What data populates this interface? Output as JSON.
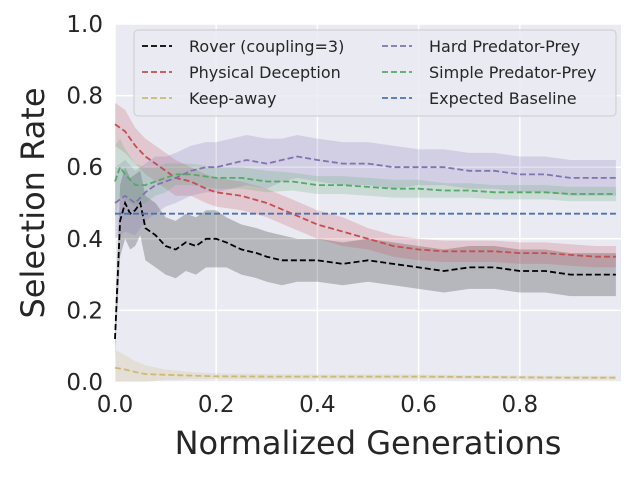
{
  "chart_data": {
    "type": "line",
    "title": "",
    "xlabel": "Normalized Generations",
    "ylabel": "Selection Rate",
    "xlim": [
      0.0,
      1.0
    ],
    "ylim": [
      0.0,
      1.0
    ],
    "xticks": [
      "0.0",
      "0.2",
      "0.4",
      "0.6",
      "0.8"
    ],
    "yticks": [
      "0.0",
      "0.2",
      "0.4",
      "0.6",
      "0.8",
      "1.0"
    ],
    "grid": true,
    "legend_position": "top",
    "series": [
      {
        "name": "Rover (coupling=3)",
        "color": "#000000",
        "x": [
          0.0,
          0.01,
          0.02,
          0.03,
          0.04,
          0.05,
          0.06,
          0.08,
          0.1,
          0.12,
          0.14,
          0.16,
          0.18,
          0.2,
          0.22,
          0.25,
          0.28,
          0.3,
          0.33,
          0.36,
          0.4,
          0.45,
          0.5,
          0.55,
          0.6,
          0.65,
          0.7,
          0.75,
          0.8,
          0.85,
          0.9,
          0.95,
          0.99
        ],
        "y": [
          0.12,
          0.45,
          0.5,
          0.47,
          0.48,
          0.5,
          0.43,
          0.41,
          0.38,
          0.37,
          0.39,
          0.38,
          0.4,
          0.4,
          0.39,
          0.37,
          0.36,
          0.35,
          0.34,
          0.34,
          0.34,
          0.33,
          0.34,
          0.33,
          0.32,
          0.31,
          0.32,
          0.32,
          0.31,
          0.31,
          0.3,
          0.3,
          0.3
        ],
        "band": [
          0.05,
          0.1,
          0.1,
          0.1,
          0.1,
          0.09,
          0.09,
          0.09,
          0.08,
          0.08,
          0.08,
          0.08,
          0.08,
          0.08,
          0.07,
          0.07,
          0.07,
          0.07,
          0.07,
          0.06,
          0.06,
          0.06,
          0.06,
          0.06,
          0.06,
          0.06,
          0.06,
          0.06,
          0.06,
          0.06,
          0.06,
          0.06,
          0.06
        ]
      },
      {
        "name": "Physical Deception",
        "color": "#C44E52",
        "x": [
          0.0,
          0.02,
          0.04,
          0.06,
          0.08,
          0.1,
          0.12,
          0.15,
          0.18,
          0.2,
          0.25,
          0.3,
          0.35,
          0.4,
          0.45,
          0.5,
          0.55,
          0.6,
          0.65,
          0.7,
          0.75,
          0.8,
          0.85,
          0.9,
          0.95,
          0.99
        ],
        "y": [
          0.72,
          0.7,
          0.66,
          0.63,
          0.61,
          0.59,
          0.57,
          0.56,
          0.54,
          0.53,
          0.52,
          0.5,
          0.47,
          0.44,
          0.42,
          0.4,
          0.38,
          0.37,
          0.365,
          0.365,
          0.365,
          0.36,
          0.36,
          0.355,
          0.35,
          0.35
        ],
        "band": [
          0.06,
          0.06,
          0.05,
          0.05,
          0.05,
          0.05,
          0.05,
          0.04,
          0.04,
          0.04,
          0.04,
          0.04,
          0.04,
          0.04,
          0.04,
          0.03,
          0.03,
          0.03,
          0.03,
          0.03,
          0.03,
          0.03,
          0.03,
          0.03,
          0.03,
          0.03
        ]
      },
      {
        "name": "Keep-away",
        "color": "#CCB974",
        "x": [
          0.0,
          0.02,
          0.04,
          0.06,
          0.1,
          0.15,
          0.2,
          0.3,
          0.4,
          0.5,
          0.6,
          0.7,
          0.8,
          0.9,
          0.99
        ],
        "y": [
          0.04,
          0.035,
          0.028,
          0.022,
          0.02,
          0.018,
          0.016,
          0.015,
          0.015,
          0.015,
          0.015,
          0.014,
          0.013,
          0.012,
          0.012
        ],
        "band": [
          0.05,
          0.04,
          0.03,
          0.025,
          0.015,
          0.01,
          0.008,
          0.007,
          0.006,
          0.006,
          0.006,
          0.005,
          0.005,
          0.005,
          0.005
        ]
      },
      {
        "name": "Hard Predator-Prey",
        "color": "#8172B2",
        "x": [
          0.0,
          0.02,
          0.04,
          0.06,
          0.08,
          0.1,
          0.12,
          0.15,
          0.18,
          0.2,
          0.23,
          0.26,
          0.3,
          0.33,
          0.36,
          0.4,
          0.45,
          0.5,
          0.55,
          0.6,
          0.65,
          0.7,
          0.75,
          0.8,
          0.85,
          0.9,
          0.95,
          0.99
        ],
        "y": [
          0.5,
          0.52,
          0.5,
          0.53,
          0.55,
          0.56,
          0.57,
          0.59,
          0.6,
          0.6,
          0.61,
          0.62,
          0.61,
          0.62,
          0.63,
          0.62,
          0.61,
          0.61,
          0.6,
          0.6,
          0.6,
          0.59,
          0.59,
          0.58,
          0.58,
          0.57,
          0.57,
          0.57
        ],
        "band": [
          0.1,
          0.1,
          0.09,
          0.08,
          0.08,
          0.07,
          0.07,
          0.07,
          0.07,
          0.07,
          0.07,
          0.07,
          0.07,
          0.06,
          0.06,
          0.06,
          0.06,
          0.06,
          0.06,
          0.05,
          0.05,
          0.05,
          0.05,
          0.05,
          0.05,
          0.05,
          0.05,
          0.05
        ]
      },
      {
        "name": "Simple Predator-Prey",
        "color": "#55A868",
        "x": [
          0.0,
          0.01,
          0.02,
          0.04,
          0.06,
          0.08,
          0.1,
          0.12,
          0.15,
          0.2,
          0.25,
          0.3,
          0.35,
          0.4,
          0.45,
          0.5,
          0.55,
          0.6,
          0.65,
          0.7,
          0.75,
          0.8,
          0.85,
          0.9,
          0.95,
          0.99
        ],
        "y": [
          0.56,
          0.6,
          0.58,
          0.55,
          0.55,
          0.56,
          0.57,
          0.58,
          0.58,
          0.57,
          0.57,
          0.56,
          0.56,
          0.55,
          0.55,
          0.545,
          0.54,
          0.54,
          0.535,
          0.535,
          0.53,
          0.53,
          0.53,
          0.525,
          0.525,
          0.525
        ],
        "band": [
          0.1,
          0.08,
          0.07,
          0.06,
          0.05,
          0.04,
          0.04,
          0.03,
          0.03,
          0.03,
          0.03,
          0.03,
          0.025,
          0.025,
          0.025,
          0.025,
          0.025,
          0.025,
          0.02,
          0.02,
          0.02,
          0.02,
          0.02,
          0.02,
          0.02,
          0.02
        ]
      },
      {
        "name": "Expected Baseline",
        "color": "#4C72B0",
        "x": [
          0.0,
          0.99
        ],
        "y": [
          0.47,
          0.47
        ],
        "band": null
      }
    ]
  }
}
